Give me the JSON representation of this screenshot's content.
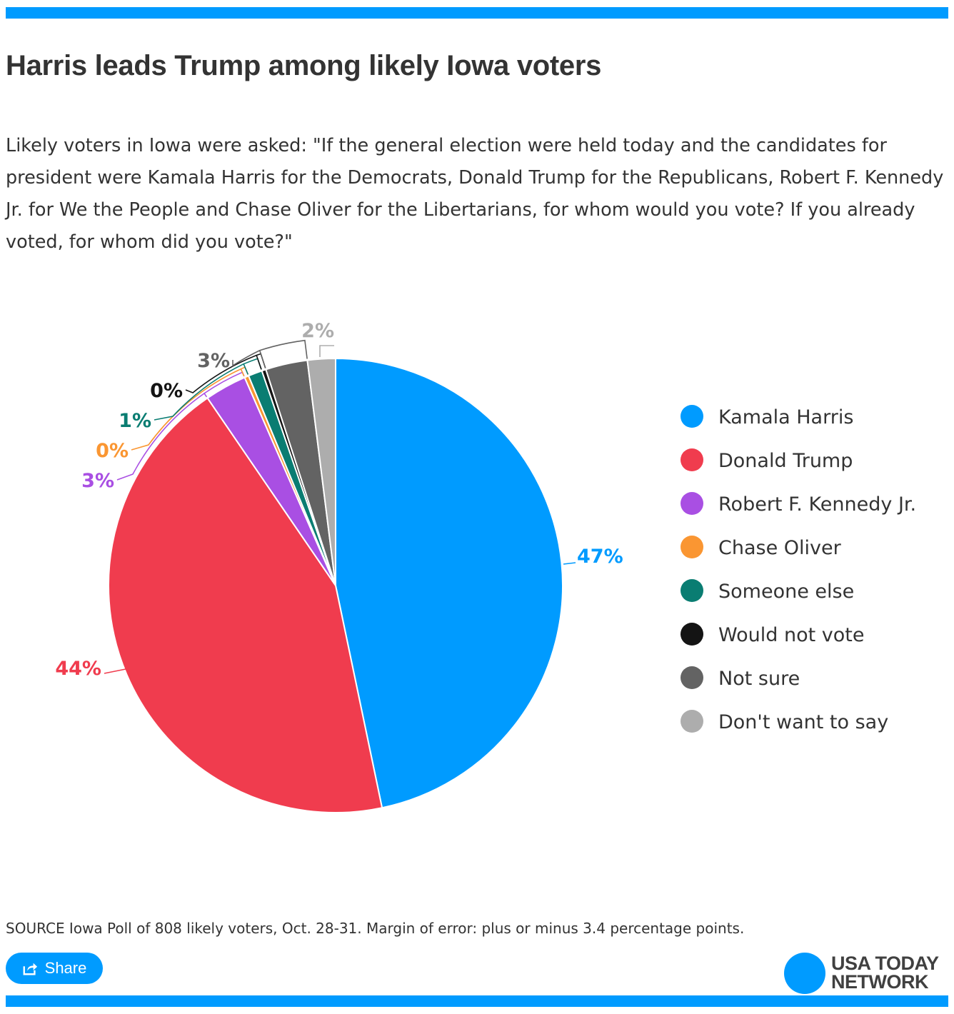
{
  "header": {
    "title": "Harris leads Trump among likely Iowa voters",
    "subtitle": "Likely voters in Iowa were asked: \"If the general election were held today and the candidates for president were Kamala Harris for the Democrats, Donald Trump for the Republicans, Robert F. Kennedy Jr. for We the People and Chase Oliver for the Libertarians, for whom would you vote? If you already voted, for whom did you vote?\""
  },
  "chart_data": {
    "type": "pie",
    "title": "Harris leads Trump among likely Iowa voters",
    "start": "top",
    "direction": "clockwise",
    "legend_position": "right",
    "slices": [
      {
        "name": "Kamala Harris",
        "value": 47,
        "label": "47%",
        "color": "#009bff"
      },
      {
        "name": "Donald Trump",
        "value": 44,
        "label": "44%",
        "color": "#f03c4e"
      },
      {
        "name": "Robert F. Kennedy Jr.",
        "value": 3,
        "label": "3%",
        "color": "#a94fe3"
      },
      {
        "name": "Chase Oliver",
        "value": 0.3,
        "label": "0%",
        "color": "#fa9632"
      },
      {
        "name": "Someone else",
        "value": 1,
        "label": "1%",
        "color": "#0a7d72"
      },
      {
        "name": "Would not vote",
        "value": 0.3,
        "label": "0%",
        "color": "#141414"
      },
      {
        "name": "Not sure",
        "value": 3,
        "label": "3%",
        "color": "#636363"
      },
      {
        "name": "Don't want to say",
        "value": 2,
        "label": "2%",
        "color": "#adadad"
      }
    ]
  },
  "legend": {
    "items": [
      {
        "label": "Kamala Harris",
        "color": "#009bff"
      },
      {
        "label": "Donald Trump",
        "color": "#f03c4e"
      },
      {
        "label": "Robert F. Kennedy Jr.",
        "color": "#a94fe3"
      },
      {
        "label": "Chase Oliver",
        "color": "#fa9632"
      },
      {
        "label": "Someone else",
        "color": "#0a7d72"
      },
      {
        "label": "Would not vote",
        "color": "#141414"
      },
      {
        "label": "Not sure",
        "color": "#636363"
      },
      {
        "label": "Don't want to say",
        "color": "#adadad"
      }
    ]
  },
  "footer": {
    "source": "SOURCE Iowa Poll of 808 likely voters, Oct. 28-31. Margin of error: plus or minus 3.4 percentage points.",
    "share_label": "Share",
    "logo_line1": "USA TODAY",
    "logo_line2": "NETWORK",
    "accent_color": "#009bff"
  }
}
